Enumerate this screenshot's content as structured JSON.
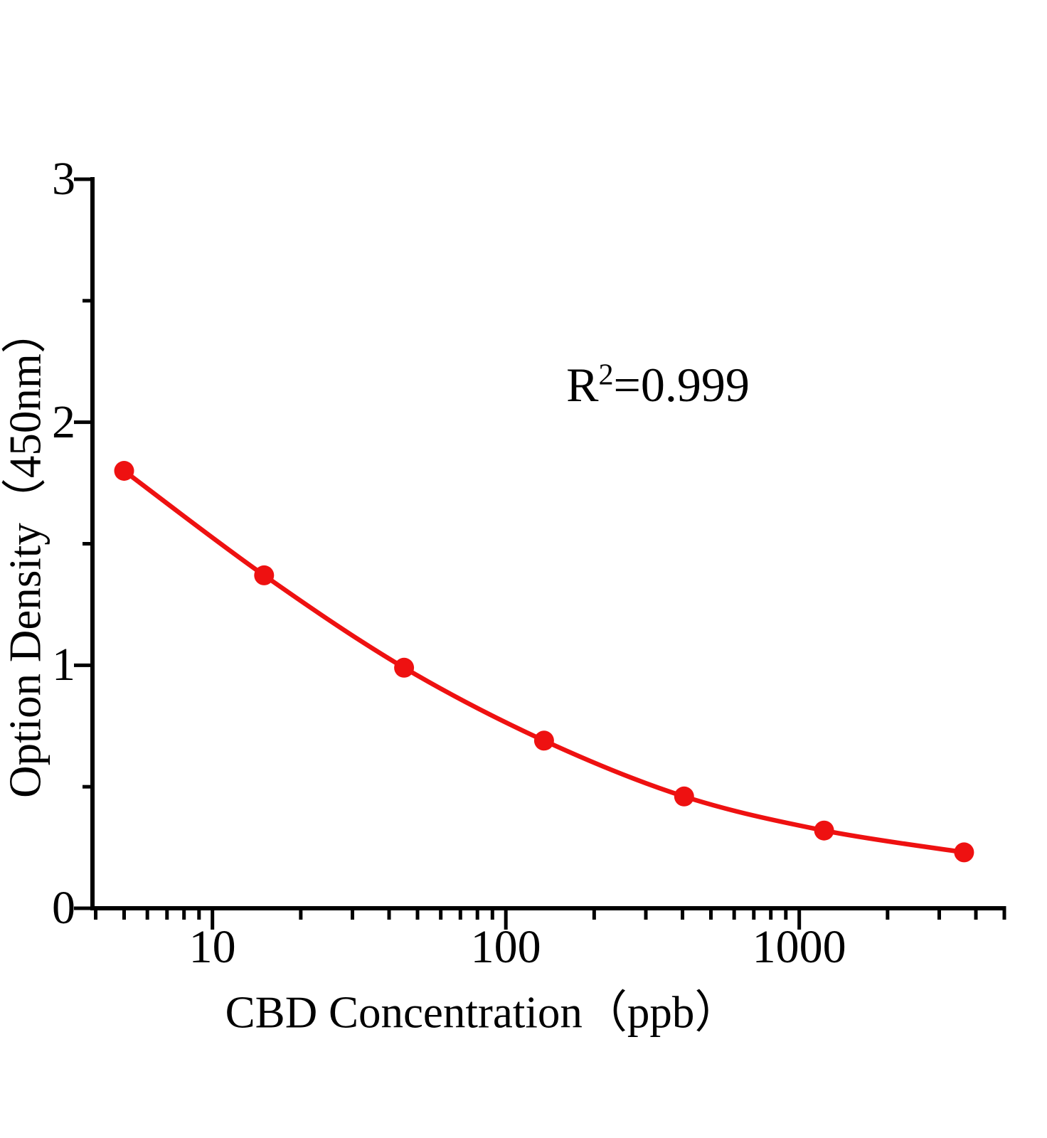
{
  "chart_data": {
    "type": "line",
    "x_scale": "log",
    "xlabel": "CBD Concentration（ppb）",
    "ylabel": "Option Density（450nm）",
    "annotation": {
      "base": "R",
      "superscript": "2",
      "rest": "=0.999"
    },
    "xlim": [
      3.9,
      5000
    ],
    "ylim": [
      0,
      3
    ],
    "x_major_ticks": [
      10,
      100,
      1000
    ],
    "x_ticklabels": [
      "10",
      "100",
      "1000"
    ],
    "x_minor_ticks": [
      4,
      5,
      6,
      7,
      8,
      9,
      20,
      30,
      40,
      50,
      60,
      70,
      80,
      90,
      200,
      300,
      400,
      500,
      600,
      700,
      800,
      900,
      2000,
      3000,
      4000,
      5000
    ],
    "y_major_ticks": [
      3,
      2,
      1,
      0
    ],
    "y_ticklabels": [
      "3",
      "2",
      "1",
      "0"
    ],
    "y_minor_ticks": [
      2.5,
      1.5,
      0.5
    ],
    "grid": false,
    "legend": null,
    "series": [
      {
        "marker": "circle",
        "color": "#ee1111",
        "x": [
          5,
          15,
          45,
          135,
          405,
          1215,
          3645
        ],
        "y": [
          1.8,
          1.37,
          0.99,
          0.69,
          0.46,
          0.32,
          0.23
        ]
      }
    ]
  },
  "colors": {
    "curve": "#ee1111",
    "axis": "#000000",
    "text": "#000000",
    "background": "#ffffff"
  }
}
